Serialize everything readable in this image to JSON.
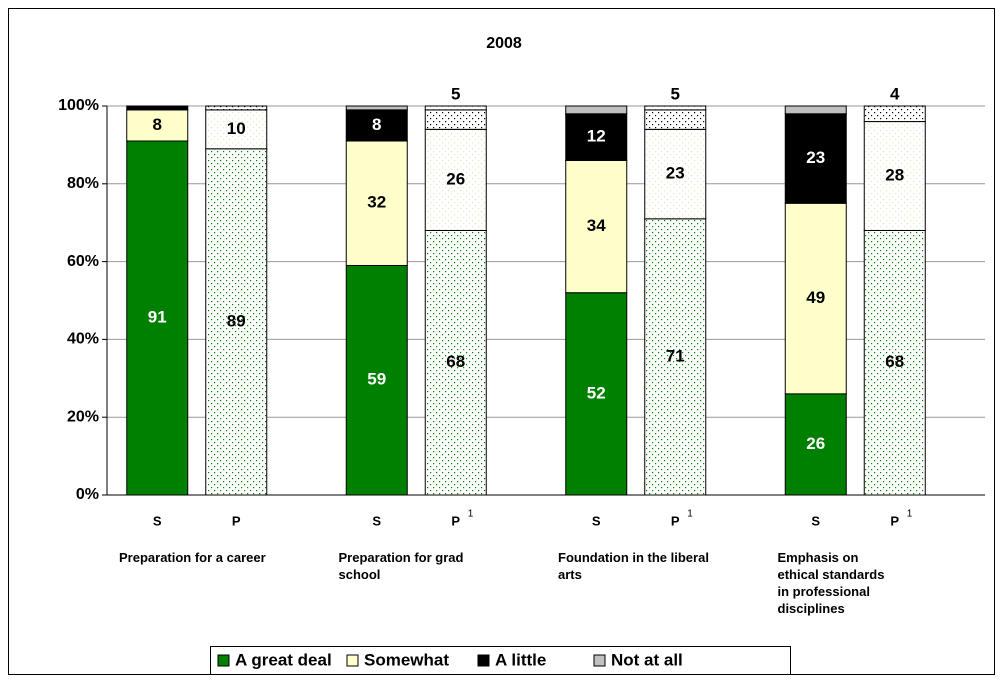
{
  "chart_data": {
    "type": "stacked_bar",
    "title": "2008",
    "categories": [
      "S",
      "P",
      "S",
      "P",
      "S",
      "P",
      "S",
      "P"
    ],
    "category_notes": [
      null,
      null,
      null,
      "1",
      null,
      "1",
      null,
      "1"
    ],
    "groups": [
      "Preparation for a career",
      "Preparation for grad school",
      "Foundation in the liberal arts",
      "Emphasis on ethical standards in professional disciplines"
    ],
    "bar_styles": [
      "solid",
      "dotted",
      "solid",
      "dotted",
      "solid",
      "dotted",
      "solid",
      "dotted"
    ],
    "series": [
      {
        "name": "A great deal",
        "color": "#008000",
        "label_color": "#ffffff",
        "values": [
          91,
          89,
          59,
          68,
          52,
          71,
          26,
          68
        ]
      },
      {
        "name": "Somewhat",
        "color": "#ffffcc",
        "label_color": "#000000",
        "values": [
          8,
          10,
          32,
          26,
          34,
          23,
          49,
          28
        ]
      },
      {
        "name": "A little",
        "color": "#000000",
        "label_color": "#ffffff",
        "values": [
          1,
          1,
          8,
          5,
          12,
          5,
          23,
          4
        ]
      },
      {
        "name": "Not at all",
        "color": "#c0c0c0",
        "label_color": "#000000",
        "values": [
          0,
          0,
          1,
          1,
          2,
          1,
          2,
          0
        ]
      }
    ],
    "ylim": [
      0,
      100
    ],
    "yticks": [
      {
        "value": 0,
        "label": "0%"
      },
      {
        "value": 20,
        "label": "20%"
      },
      {
        "value": 40,
        "label": "40%"
      },
      {
        "value": 60,
        "label": "60%"
      },
      {
        "value": 80,
        "label": "80%"
      },
      {
        "value": 100,
        "label": "100%"
      }
    ],
    "grid": true,
    "legend": "bottom"
  }
}
